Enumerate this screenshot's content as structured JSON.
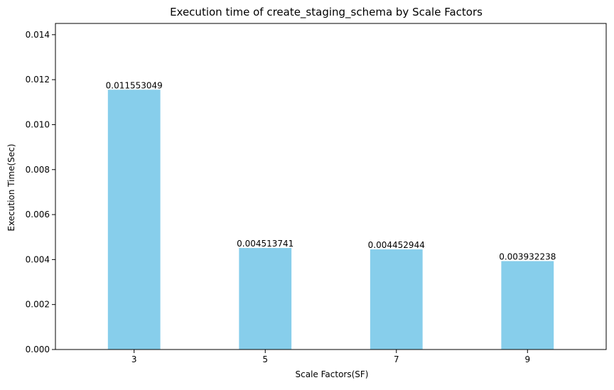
{
  "chart_data": {
    "type": "bar",
    "title": "Execution time of create_staging_schema by Scale Factors",
    "xlabel": "Scale Factors(SF)",
    "ylabel": "Execution Time(Sec)",
    "categories": [
      "3",
      "5",
      "7",
      "9"
    ],
    "values": [
      0.011553049,
      0.004513741,
      0.004452944,
      0.003932238
    ],
    "data_labels": [
      "0.011553049",
      "0.004513741",
      "0.004452944",
      "0.003932238"
    ],
    "ylim": [
      0,
      0.0145
    ],
    "yticks": [
      0.0,
      0.002,
      0.004,
      0.006,
      0.008,
      0.01,
      0.012,
      0.014
    ],
    "ytick_labels": [
      "0.000",
      "0.002",
      "0.004",
      "0.006",
      "0.008",
      "0.010",
      "0.012",
      "0.014"
    ],
    "bar_color": "#87ceeb",
    "grid": false,
    "legend": "none"
  }
}
